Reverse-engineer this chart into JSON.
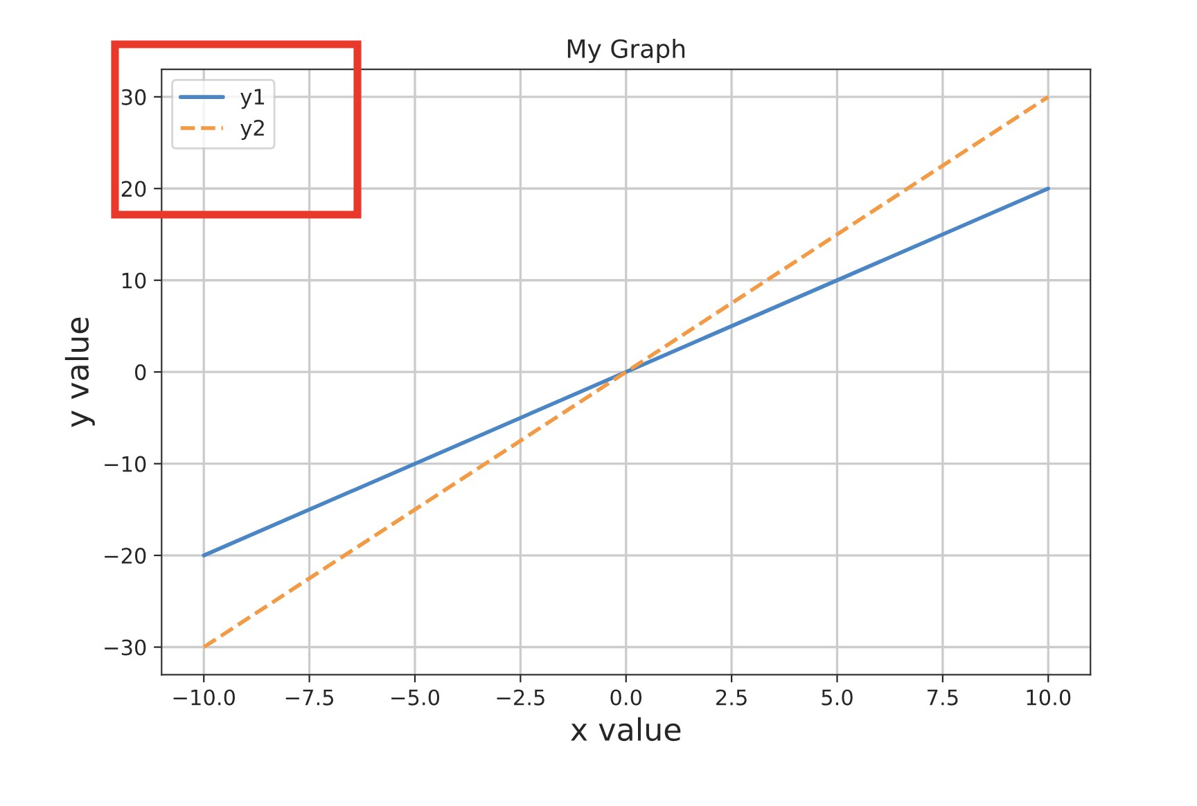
{
  "chart_data": {
    "type": "line",
    "title": "My Graph",
    "xlabel": "x value",
    "ylabel": "y value",
    "series": [
      {
        "name": "y1",
        "color": "#4a86c5",
        "line_style": "solid",
        "values": [
          -20,
          20
        ]
      },
      {
        "name": "y2",
        "color": "#f39a45",
        "line_style": "dashed",
        "values": [
          -30,
          30
        ]
      }
    ],
    "x": [
      -10,
      10
    ],
    "xlim": [
      -11,
      11
    ],
    "ylim": [
      -33,
      33
    ],
    "xticks": [
      {
        "value": -10,
        "label": "−10.0"
      },
      {
        "value": -7.5,
        "label": "−7.5"
      },
      {
        "value": -5,
        "label": "−5.0"
      },
      {
        "value": -2.5,
        "label": "−2.5"
      },
      {
        "value": 0,
        "label": "0.0"
      },
      {
        "value": 2.5,
        "label": "2.5"
      },
      {
        "value": 5,
        "label": "5.0"
      },
      {
        "value": 7.5,
        "label": "7.5"
      },
      {
        "value": 10,
        "label": "10.0"
      }
    ],
    "yticks": [
      {
        "value": -30,
        "label": "−30"
      },
      {
        "value": -20,
        "label": "−20"
      },
      {
        "value": -10,
        "label": "−10"
      },
      0,
      10,
      20,
      30
    ],
    "grid": true,
    "legend": "top left"
  }
}
